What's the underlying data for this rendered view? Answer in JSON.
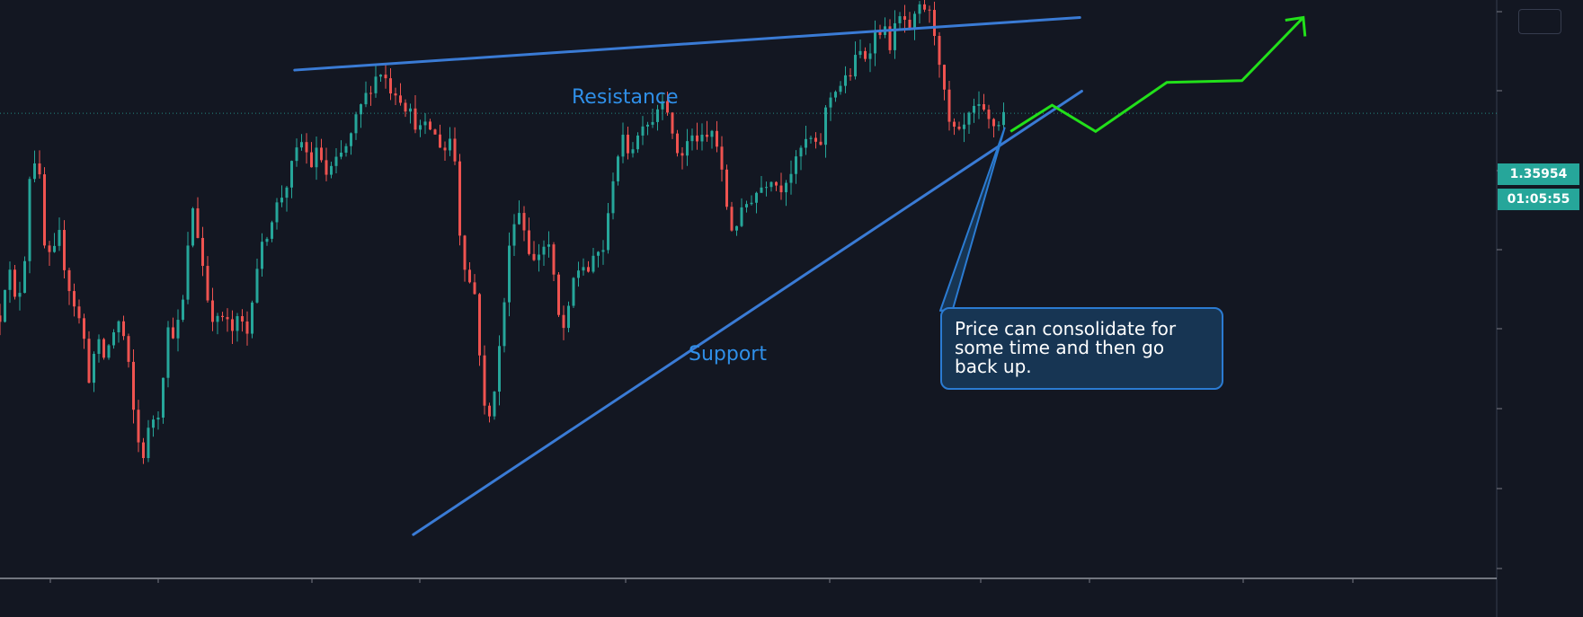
{
  "chart_data": {
    "type": "candlestick",
    "current_price": "1.35954",
    "countdown": "01:05:55",
    "colors": {
      "background": "#131722",
      "up": "#26a69a",
      "down": "#ef5350",
      "trendline": "#3a7bd5",
      "projection": "#22e01a",
      "callout_fill": "#173553",
      "callout_border": "#2b7bd2",
      "label_text": "#2f8fe8",
      "badge": "#26a69a"
    },
    "y_axis": {
      "top_value": 1.366,
      "bottom_value": 1.333
    },
    "path_points": [
      [
        0,
        1.348
      ],
      [
        8,
        1.351
      ],
      [
        16,
        1.3485
      ],
      [
        24,
        1.3505
      ],
      [
        30,
        1.356
      ],
      [
        38,
        1.3575
      ],
      [
        44,
        1.352
      ],
      [
        52,
        1.351
      ],
      [
        60,
        1.3525
      ],
      [
        68,
        1.35
      ],
      [
        76,
        1.3485
      ],
      [
        84,
        1.347
      ],
      [
        90,
        1.3445
      ],
      [
        98,
        1.3465
      ],
      [
        106,
        1.3455
      ],
      [
        114,
        1.347
      ],
      [
        122,
        1.3478
      ],
      [
        130,
        1.345
      ],
      [
        138,
        1.341
      ],
      [
        146,
        1.34
      ],
      [
        152,
        1.342
      ],
      [
        160,
        1.3425
      ],
      [
        170,
        1.3472
      ],
      [
        178,
        1.347
      ],
      [
        186,
        1.349
      ],
      [
        194,
        1.3545
      ],
      [
        202,
        1.352
      ],
      [
        210,
        1.349
      ],
      [
        218,
        1.3475
      ],
      [
        226,
        1.348
      ],
      [
        234,
        1.347
      ],
      [
        242,
        1.3478
      ],
      [
        250,
        1.347
      ],
      [
        258,
        1.3505
      ],
      [
        266,
        1.352
      ],
      [
        274,
        1.3535
      ],
      [
        282,
        1.3545
      ],
      [
        290,
        1.3555
      ],
      [
        298,
        1.357
      ],
      [
        306,
        1.358
      ],
      [
        314,
        1.3565
      ],
      [
        322,
        1.3575
      ],
      [
        330,
        1.356
      ],
      [
        338,
        1.3565
      ],
      [
        346,
        1.3572
      ],
      [
        354,
        1.358
      ],
      [
        362,
        1.3595
      ],
      [
        370,
        1.3605
      ],
      [
        378,
        1.3615
      ],
      [
        386,
        1.362
      ],
      [
        394,
        1.361
      ],
      [
        402,
        1.3608
      ],
      [
        410,
        1.36
      ],
      [
        418,
        1.3592
      ],
      [
        426,
        1.3585
      ],
      [
        434,
        1.3588
      ],
      [
        442,
        1.358
      ],
      [
        450,
        1.3575
      ],
      [
        458,
        1.3585
      ],
      [
        466,
        1.352
      ],
      [
        474,
        1.35
      ],
      [
        482,
        1.349
      ],
      [
        488,
        1.343
      ],
      [
        494,
        1.3418
      ],
      [
        500,
        1.344
      ],
      [
        506,
        1.3465
      ],
      [
        512,
        1.35
      ],
      [
        518,
        1.3535
      ],
      [
        526,
        1.354
      ],
      [
        534,
        1.352
      ],
      [
        540,
        1.351
      ],
      [
        548,
        1.352
      ],
      [
        556,
        1.352
      ],
      [
        564,
        1.348
      ],
      [
        572,
        1.347
      ],
      [
        580,
        1.35
      ],
      [
        588,
        1.351
      ],
      [
        596,
        1.3505
      ],
      [
        604,
        1.3515
      ],
      [
        612,
        1.352
      ],
      [
        620,
        1.356
      ],
      [
        628,
        1.358
      ],
      [
        636,
        1.3575
      ],
      [
        644,
        1.358
      ],
      [
        650,
        1.3592
      ],
      [
        658,
        1.359
      ],
      [
        666,
        1.36
      ],
      [
        672,
        1.361
      ],
      [
        680,
        1.358
      ],
      [
        688,
        1.357
      ],
      [
        696,
        1.358
      ],
      [
        704,
        1.3582
      ],
      [
        712,
        1.3578
      ],
      [
        720,
        1.3585
      ],
      [
        726,
        1.3575
      ],
      [
        734,
        1.3545
      ],
      [
        740,
        1.353
      ],
      [
        748,
        1.3535
      ],
      [
        756,
        1.3545
      ],
      [
        764,
        1.355
      ],
      [
        772,
        1.3555
      ],
      [
        780,
        1.356
      ],
      [
        788,
        1.3552
      ],
      [
        796,
        1.356
      ],
      [
        804,
        1.3565
      ],
      [
        812,
        1.3578
      ],
      [
        820,
        1.358
      ],
      [
        828,
        1.3572
      ],
      [
        836,
        1.36
      ],
      [
        844,
        1.361
      ],
      [
        852,
        1.3612
      ],
      [
        860,
        1.3618
      ],
      [
        868,
        1.363
      ],
      [
        876,
        1.3628
      ],
      [
        884,
        1.364
      ],
      [
        892,
        1.3645
      ],
      [
        900,
        1.3635
      ],
      [
        908,
        1.3648
      ],
      [
        914,
        1.365
      ],
      [
        920,
        1.364
      ],
      [
        926,
        1.365
      ],
      [
        932,
        1.3656
      ],
      [
        938,
        1.3655
      ],
      [
        946,
        1.364
      ],
      [
        952,
        1.362
      ],
      [
        958,
        1.359
      ],
      [
        964,
        1.3585
      ],
      [
        970,
        1.3582
      ],
      [
        978,
        1.359
      ],
      [
        986,
        1.3598
      ],
      [
        994,
        1.3595
      ],
      [
        1000,
        1.359
      ],
      [
        1008,
        1.3588
      ],
      [
        1016,
        1.3596
      ]
    ],
    "resistance_line": {
      "label": "Resistance",
      "start": [
        298,
        1.362
      ],
      "end": [
        1092,
        1.365
      ]
    },
    "support_line": {
      "label": "Support",
      "start": [
        418,
        1.3355
      ],
      "end": [
        1094,
        1.3608
      ]
    },
    "projection_path": [
      [
        1022,
        1.3585
      ],
      [
        1064,
        1.36
      ],
      [
        1108,
        1.3585
      ],
      [
        1180,
        1.3613
      ],
      [
        1256,
        1.3614
      ],
      [
        1318,
        1.365
      ]
    ],
    "callout": {
      "text": "Price can consolidate for some time and then go back up.",
      "pointer_tip": [
        1016,
        1.3587
      ]
    }
  }
}
